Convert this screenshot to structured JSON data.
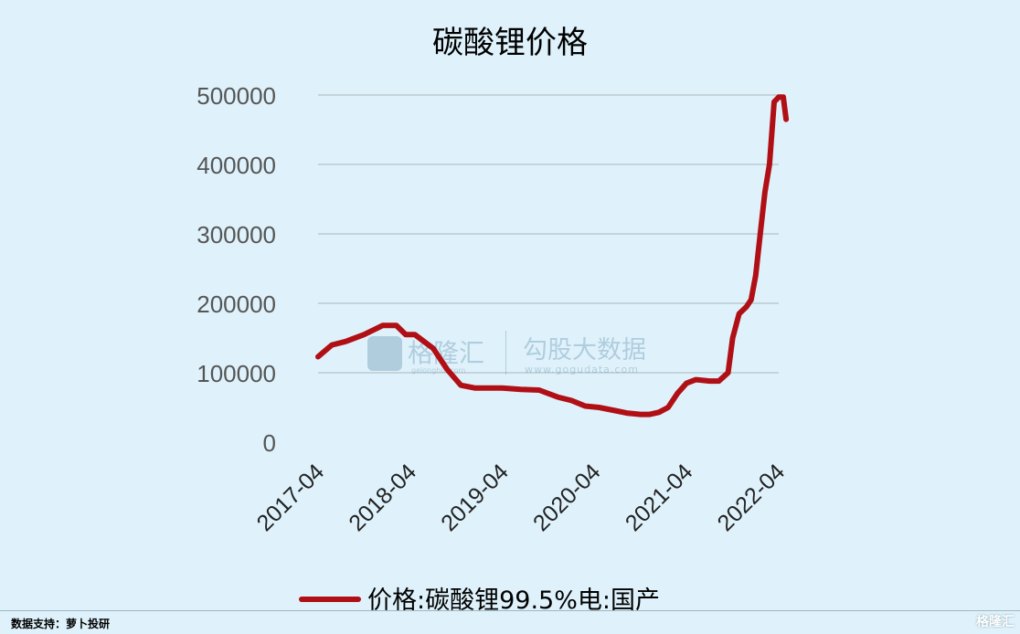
{
  "chart_data": {
    "type": "line",
    "title": "碳酸锂价格",
    "xlabel": "",
    "ylabel": "",
    "ylim": [
      0,
      500000
    ],
    "yticks": [
      "0",
      "100000",
      "200000",
      "300000",
      "400000",
      "500000"
    ],
    "xticks": [
      "2017-04",
      "2018-04",
      "2019-04",
      "2020-04",
      "2021-04",
      "2022-04"
    ],
    "grid": true,
    "legend_position": "bottom",
    "series": [
      {
        "name": "价格:碳酸锂99.5%电:国产",
        "color": "#b01015",
        "x": [
          2017.25,
          2017.4,
          2017.55,
          2017.75,
          2017.95,
          2018.1,
          2018.2,
          2018.3,
          2018.5,
          2018.65,
          2018.8,
          2018.95,
          2019.05,
          2019.25,
          2019.45,
          2019.65,
          2019.85,
          2020.0,
          2020.15,
          2020.3,
          2020.45,
          2020.6,
          2020.75,
          2020.85,
          2020.95,
          2021.05,
          2021.15,
          2021.25,
          2021.35,
          2021.5,
          2021.6,
          2021.7,
          2021.75,
          2021.82,
          2021.9,
          2021.95,
          2022.0,
          2022.05,
          2022.1,
          2022.15,
          2022.2,
          2022.25,
          2022.3,
          2022.33
        ],
        "values": [
          123000,
          140000,
          145000,
          155000,
          168000,
          168000,
          155000,
          155000,
          135000,
          105000,
          82000,
          78000,
          78000,
          78000,
          76000,
          75000,
          65000,
          60000,
          52000,
          50000,
          46000,
          42000,
          40000,
          40000,
          43000,
          50000,
          70000,
          85000,
          90000,
          88000,
          88000,
          100000,
          150000,
          185000,
          195000,
          205000,
          240000,
          300000,
          360000,
          400000,
          490000,
          497000,
          497000,
          465000
        ]
      }
    ]
  },
  "watermark": {
    "brand_cn": "格隆汇",
    "brand_url": "gelonghui.com",
    "partner_cn": "勾股大数据",
    "partner_url": "www.gogudata.com"
  },
  "footer": {
    "source": "数据支持：萝卜投研",
    "corner_logo": "格隆汇"
  }
}
